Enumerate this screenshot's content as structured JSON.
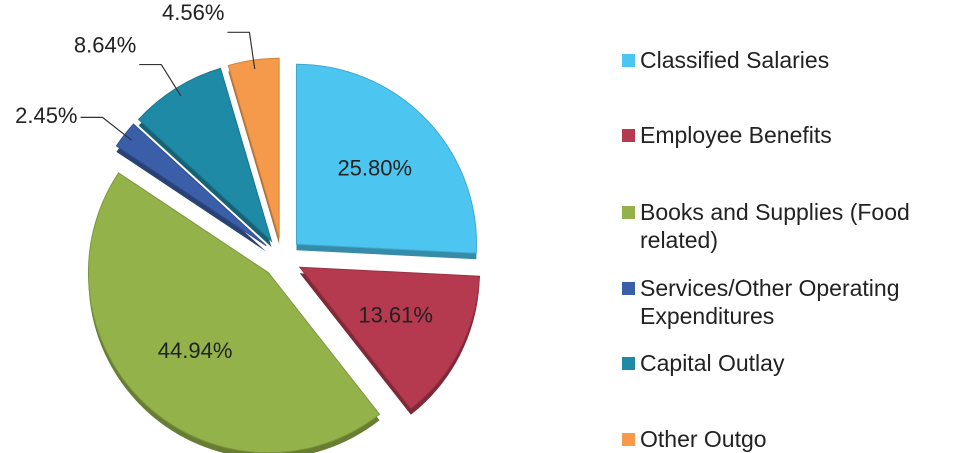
{
  "chart_data": {
    "type": "pie",
    "categories": [
      "Classified Salaries",
      "Employee Benefits",
      "Books and Supplies (Food related)",
      "Services/Other Operating Expenditures",
      "Capital Outlay",
      "Other Outgo"
    ],
    "values": [
      25.8,
      13.61,
      44.94,
      2.45,
      8.64,
      4.56
    ],
    "value_labels": [
      "25.80%",
      "13.61%",
      "44.94%",
      "2.45%",
      "8.64%",
      "4.56%"
    ],
    "colors": [
      "#4cc6f0",
      "#b5394f",
      "#93b34a",
      "#3b5ea8",
      "#1f8aa6",
      "#f59a4a"
    ],
    "legend": "right"
  }
}
